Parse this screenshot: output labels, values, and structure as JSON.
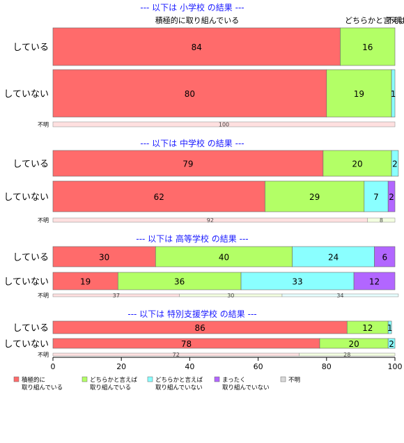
{
  "chart_data": {
    "type": "bar",
    "orientation": "horizontal",
    "stacked": true,
    "xlim": [
      0,
      100
    ],
    "x_ticks": [
      0,
      20,
      40,
      60,
      80,
      100
    ],
    "grid": false,
    "legend_position": "bottom",
    "categories": [
      "積極的に\n取り組んでいる",
      "どちらかと言えば\n取り組んでいる",
      "どちらかと言えば\n取り組んでいない",
      "まったく\n取り組んでいない",
      "不明"
    ],
    "colors": [
      "#ff6b6b",
      "#b3ff66",
      "#8affff",
      "#b266ff",
      "#d9d9d9"
    ],
    "top_annotations": {
      "left": "積極的に取り組んでいる",
      "right": "どちらかと言えば",
      "right_overlap": "不明"
    },
    "panels": [
      {
        "title": "--- 以下は 小学校 の結果 ---",
        "rows": [
          {
            "label": "している",
            "values": [
              84,
              16,
              0,
              0,
              0
            ],
            "labels": [
              "84",
              "16",
              "",
              "",
              ""
            ]
          },
          {
            "label": "していない",
            "values": [
              80,
              19,
              1,
              0,
              0
            ],
            "labels": [
              "80",
              "19",
              "1",
              "",
              ""
            ]
          },
          {
            "label": "不明",
            "small": true,
            "values": [
              100,
              0,
              0,
              0,
              0
            ],
            "labels": [
              "100",
              "",
              "",
              "",
              ""
            ]
          }
        ]
      },
      {
        "title": "--- 以下は 中学校 の結果 ---",
        "rows": [
          {
            "label": "している",
            "values": [
              79,
              20,
              2,
              0,
              0
            ],
            "labels": [
              "79",
              "20",
              "2",
              "",
              ""
            ]
          },
          {
            "label": "していない",
            "values": [
              62,
              29,
              7,
              2,
              0
            ],
            "labels": [
              "62",
              "29",
              "7",
              "2",
              ""
            ]
          },
          {
            "label": "不明",
            "small": true,
            "values": [
              92,
              8,
              0,
              0,
              0
            ],
            "labels": [
              "92",
              "8",
              "",
              "",
              ""
            ]
          }
        ]
      },
      {
        "title": "--- 以下は 高等学校 の結果 ---",
        "rows": [
          {
            "label": "している",
            "values": [
              30,
              40,
              24,
              6,
              0
            ],
            "labels": [
              "30",
              "40",
              "24",
              "6",
              ""
            ]
          },
          {
            "label": "していない",
            "values": [
              19,
              36,
              33,
              12,
              0
            ],
            "labels": [
              "19",
              "36",
              "33",
              "12",
              ""
            ]
          },
          {
            "label": "不明",
            "small": true,
            "values": [
              37,
              30,
              34,
              0,
              0
            ],
            "labels": [
              "37",
              "30",
              "34",
              "",
              ""
            ]
          }
        ]
      },
      {
        "title": "--- 以下は 特別支援学校 の結果 ---",
        "rows": [
          {
            "label": "している",
            "values": [
              86,
              12,
              1,
              0,
              0
            ],
            "labels": [
              "86",
              "12",
              "1",
              "",
              ""
            ]
          },
          {
            "label": "していない",
            "values": [
              78,
              20,
              2,
              0,
              0
            ],
            "labels": [
              "78",
              "20",
              "2",
              "",
              ""
            ]
          },
          {
            "label": "不明",
            "small": true,
            "values": [
              72,
              28,
              0,
              0,
              0
            ],
            "labels": [
              "72",
              "28",
              "",
              "",
              ""
            ]
          }
        ]
      }
    ]
  }
}
